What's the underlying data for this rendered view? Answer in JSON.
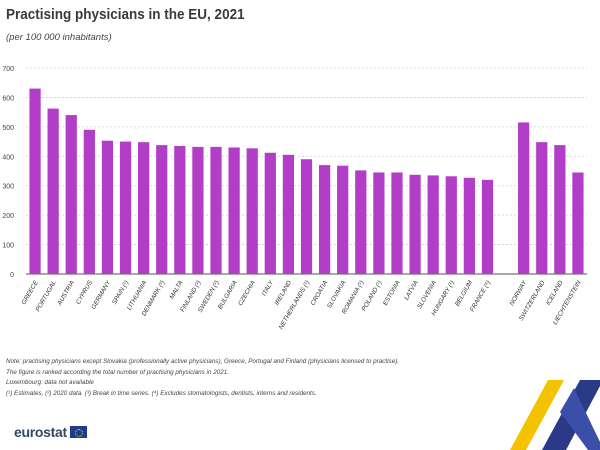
{
  "title": "Practising physicians in the EU, 2021",
  "subtitle": "(per 100 000 inhabitants)",
  "notes": [
    "Note: practising physicians except Slovakia (professionally active physicians), Greece, Portugal and Finland (physicians licensed to practise).",
    "The figure is ranked according the total number of practising physicians in 2021.",
    "Luxembourg: data not available",
    "(¹) Estimates, (²) 2020 data. (³) Break in time series. (⁴) Excludes stomatologists, dentists, interns and residents."
  ],
  "logo": {
    "text": "eurostat",
    "flag_icon": "eu-flag-icon"
  },
  "colors": {
    "bar": "#b23dc6",
    "grid": "#cfcfcf",
    "axis": "#555555",
    "accent_blue": "#2b3a86",
    "accent_yellow": "#f5c200"
  },
  "chart_data": {
    "type": "bar",
    "categories": [
      "GREECE",
      "PORTUGAL",
      "AUSTRIA",
      "CYPRUS",
      "GERMANY",
      "SPAIN (¹)",
      "LITHUANIA",
      "DENMARK (²)",
      "MALTA",
      "FINLAND (²)",
      "SWEDEN (²)",
      "BULGARIA",
      "CZECHIA",
      "ITALY",
      "IRELAND",
      "NETHERLANDS (¹)",
      "CROATIA",
      "SLOVAKIA",
      "ROMANIA (¹)",
      "POLAND (¹)",
      "ESTONIA",
      "LATVIA",
      "SLOVENIA",
      "HUNGARY (¹)",
      "BELGIUM",
      "FRANCE (⁴)",
      "",
      "NORWAY",
      "SWITZERLAND",
      "ICELAND",
      "LIECHTENSTEIN"
    ],
    "values": [
      630,
      562,
      540,
      490,
      453,
      450,
      448,
      438,
      435,
      432,
      432,
      430,
      427,
      412,
      405,
      390,
      370,
      368,
      352,
      345,
      345,
      337,
      335,
      332,
      327,
      320,
      null,
      515,
      448,
      438,
      345
    ],
    "ylim": [
      0,
      700
    ],
    "yticks": [
      "0",
      "100",
      "200",
      "300",
      "400",
      "500",
      "600",
      "700"
    ],
    "ytick_values": [
      0,
      100,
      200,
      300,
      400,
      500,
      600,
      700
    ],
    "grid": true,
    "legend": "none"
  }
}
